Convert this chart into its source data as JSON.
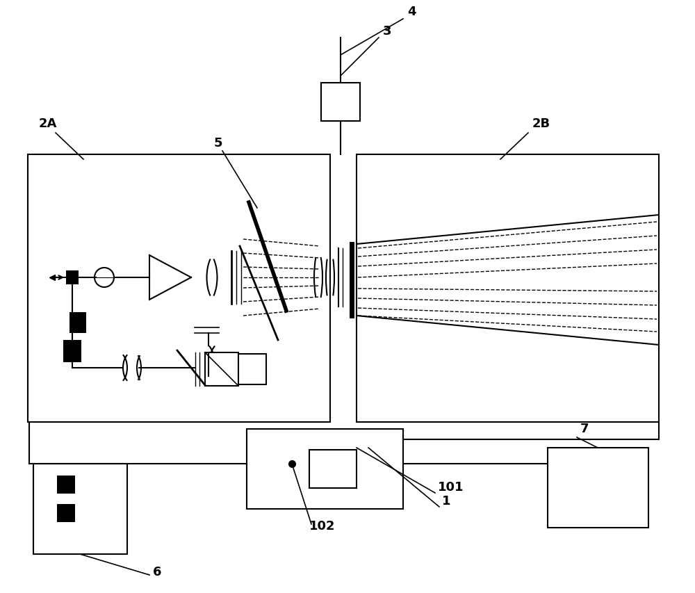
{
  "bg_color": "#ffffff",
  "line_color": "#000000",
  "figsize": [
    10.0,
    8.54
  ],
  "dpi": 100,
  "fs_label": 13,
  "lw_main": 1.5
}
